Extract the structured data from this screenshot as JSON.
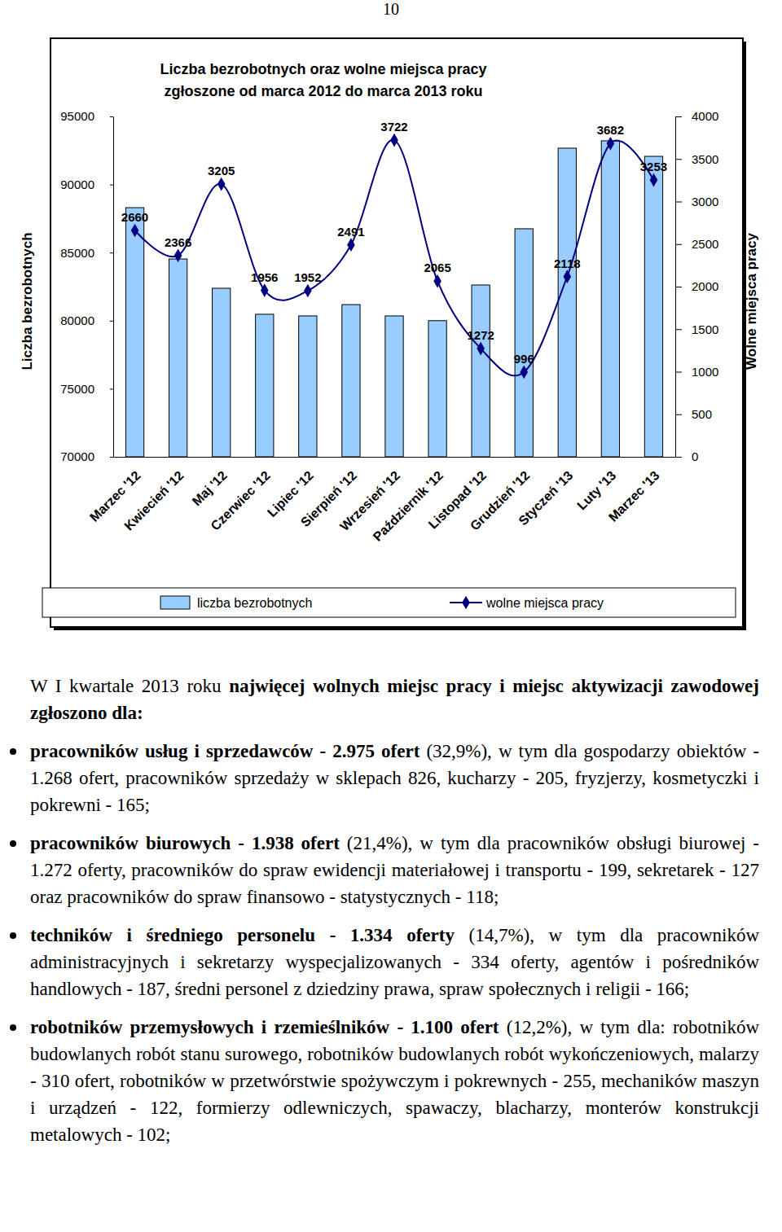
{
  "page_number": "10",
  "chart_data": {
    "type": "bar",
    "title": [
      "Liczba bezrobotnych oraz wolne miejsca pracy",
      "zgłoszone od  marca 2012 do marca 2013 roku"
    ],
    "y_label": "Liczba bezrobotnych",
    "y2_label": "Wolne miejsca pracy",
    "categories": [
      "Marzec '12",
      "Kwiecień '12",
      "Maj '12",
      "Czerwiec '12",
      "Lipiec '12",
      "Sierpień '12",
      "Wrzesień '12",
      "Październik '12",
      "Listopad '12",
      "Grudzień '12",
      "Styczeń '13",
      "Luty '13",
      "Marzec '13"
    ],
    "series": [
      {
        "name": "liczba bezrobotnych",
        "type": "bar",
        "color": "#99ccff",
        "values": [
          88300,
          84530,
          82380,
          80470,
          80350,
          81180,
          80350,
          80000,
          82620,
          86750,
          92670,
          93210,
          92070
        ]
      },
      {
        "name": "wolne miejsca pracy",
        "type": "line",
        "axis": "y2",
        "color": "#000080",
        "marker": "diamond",
        "line_style": "solid",
        "data_labels": true,
        "values": [
          2660,
          2366,
          3205,
          1956,
          1952,
          2491,
          3722,
          2065,
          1272,
          996,
          2118,
          3682,
          3253
        ]
      }
    ],
    "ylim": [
      70000,
      95000
    ],
    "yticks": [
      70000,
      75000,
      80000,
      85000,
      90000,
      95000
    ],
    "y2lim": [
      0,
      4000
    ],
    "y2ticks": [
      0,
      500,
      1000,
      1500,
      2000,
      2500,
      3000,
      3500,
      4000
    ],
    "grid": false,
    "legend": "bottom"
  },
  "document": {
    "intro": [
      "W I kwartale 2013 roku",
      "najwięcej wolnych miejsc pracy i miejsc aktywizacji zawodowej zgłoszono dla:"
    ],
    "bullets": [
      {
        "lead": "pracowników usług i sprzedawców - 2.975 ofert",
        "text": "(32,9%), w tym dla gospodarzy obiektów - 1.268 ofert, pracowników sprzedaży w sklepach 826, kucharzy - 205, fryzjerzy, kosmetyczki i pokrewni - 165;"
      },
      {
        "lead": "pracowników biurowych - 1.938 ofert",
        "text": "(21,4%), w tym dla pracowników obsługi biurowej - 1.272 oferty, pracowników do spraw ewidencji materiałowej i transportu - 199, sekretarek - 127 oraz pracowników do spraw finansowo - statystycznych - 118;"
      },
      {
        "lead": "techników i średniego personelu - 1.334 oferty",
        "text": "(14,7%), w tym dla pracowników administracyjnych i sekretarzy wyspecjalizowanych - 334 oferty, agentów i pośredników handlowych - 187, średni personel z dziedziny prawa, spraw społecznych i religii - 166;"
      },
      {
        "lead": "robotników przemysłowych i rzemieślników - 1.100 ofert",
        "text": "(12,2%), w tym dla: robotników budowlanych robót stanu surowego, robotników budowlanych robót wykończeniowych, malarzy - 310 ofert, robotników w przetwórstwie spożywczym i pokrewnych - 255, mechaników maszyn i urządzeń - 122, formierzy odlewniczych, spawaczy, blacharzy, monterów konstrukcji metalowych - 102;"
      }
    ]
  }
}
